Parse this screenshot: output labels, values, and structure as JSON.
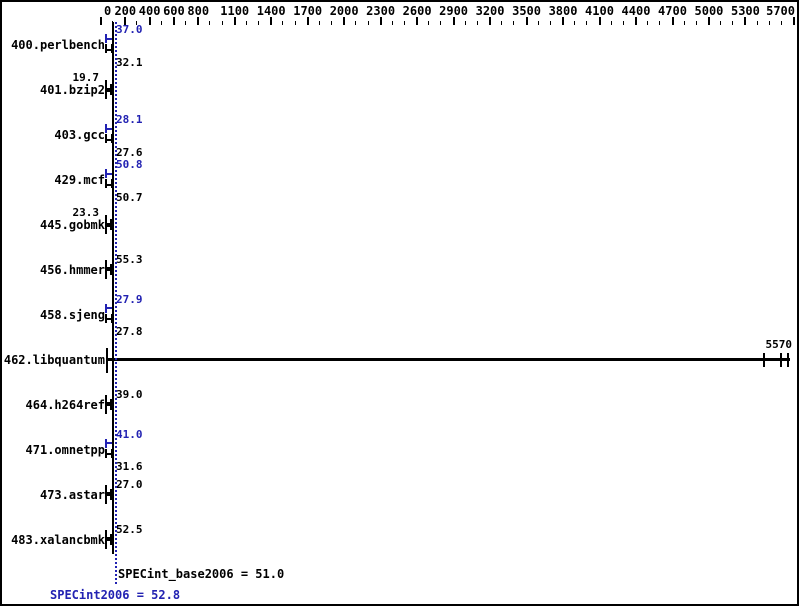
{
  "chart_data": {
    "type": "bar",
    "title": "",
    "orientation": "horizontal",
    "x_axis": {
      "min": 0,
      "max": 5700,
      "labeled_ticks": [
        0,
        200,
        400,
        600,
        800,
        1100,
        1400,
        1700,
        2000,
        2300,
        2600,
        2900,
        3200,
        3500,
        3800,
        4100,
        4400,
        4700,
        5000,
        5300,
        5700
      ],
      "minor_tick_step": 100,
      "position": "top"
    },
    "benchmarks": [
      {
        "name": "400.perlbench",
        "peak": 37.0,
        "base": 32.1,
        "peak_text": "37.0",
        "base_text": "32.1",
        "label_style": "double"
      },
      {
        "name": "401.bzip2",
        "base": 19.7,
        "base_text": "19.7",
        "label_style": "single-left"
      },
      {
        "name": "403.gcc",
        "peak": 28.1,
        "base": 27.6,
        "peak_text": "28.1",
        "base_text": "27.6",
        "label_style": "double"
      },
      {
        "name": "429.mcf",
        "peak": 50.8,
        "base": 50.7,
        "peak_text": "50.8",
        "base_text": "50.7",
        "label_style": "double"
      },
      {
        "name": "445.gobmk",
        "base": 23.3,
        "base_text": "23.3",
        "label_style": "single-left"
      },
      {
        "name": "456.hmmer",
        "base": 55.3,
        "base_text": "55.3",
        "label_style": "single-right"
      },
      {
        "name": "458.sjeng",
        "peak": 27.9,
        "base": 27.8,
        "peak_text": "27.9",
        "base_text": "27.8",
        "label_style": "double"
      },
      {
        "name": "462.libquantum",
        "base": 5570,
        "base_text": "5570",
        "label_style": "outlier",
        "run_ticks": [
          5450,
          5590,
          5650
        ]
      },
      {
        "name": "464.h264ref",
        "base": 39.0,
        "base_text": "39.0",
        "label_style": "single-right"
      },
      {
        "name": "471.omnetpp",
        "peak": 41.0,
        "base": 31.6,
        "peak_text": "41.0",
        "base_text": "31.6",
        "label_style": "double"
      },
      {
        "name": "473.astar",
        "base": 27.0,
        "base_text": "27.0",
        "label_style": "single-right"
      },
      {
        "name": "483.xalancbmk",
        "base": 52.5,
        "base_text": "52.5",
        "label_style": "single-right"
      }
    ],
    "reference_lines": [
      {
        "name": "base-mean",
        "value": 51.0,
        "style": "solid",
        "color": "#000000"
      },
      {
        "name": "peak-mean",
        "value": 52.8,
        "style": "dotted",
        "color": "#2222b2"
      }
    ],
    "footer": {
      "base_text": "SPECint_base2006 = 51.0",
      "peak_text": "SPECint2006 = 52.8"
    },
    "colors": {
      "peak_blue": "#2222b2",
      "base_black": "#000000"
    },
    "legend": "none",
    "grid": "off"
  }
}
